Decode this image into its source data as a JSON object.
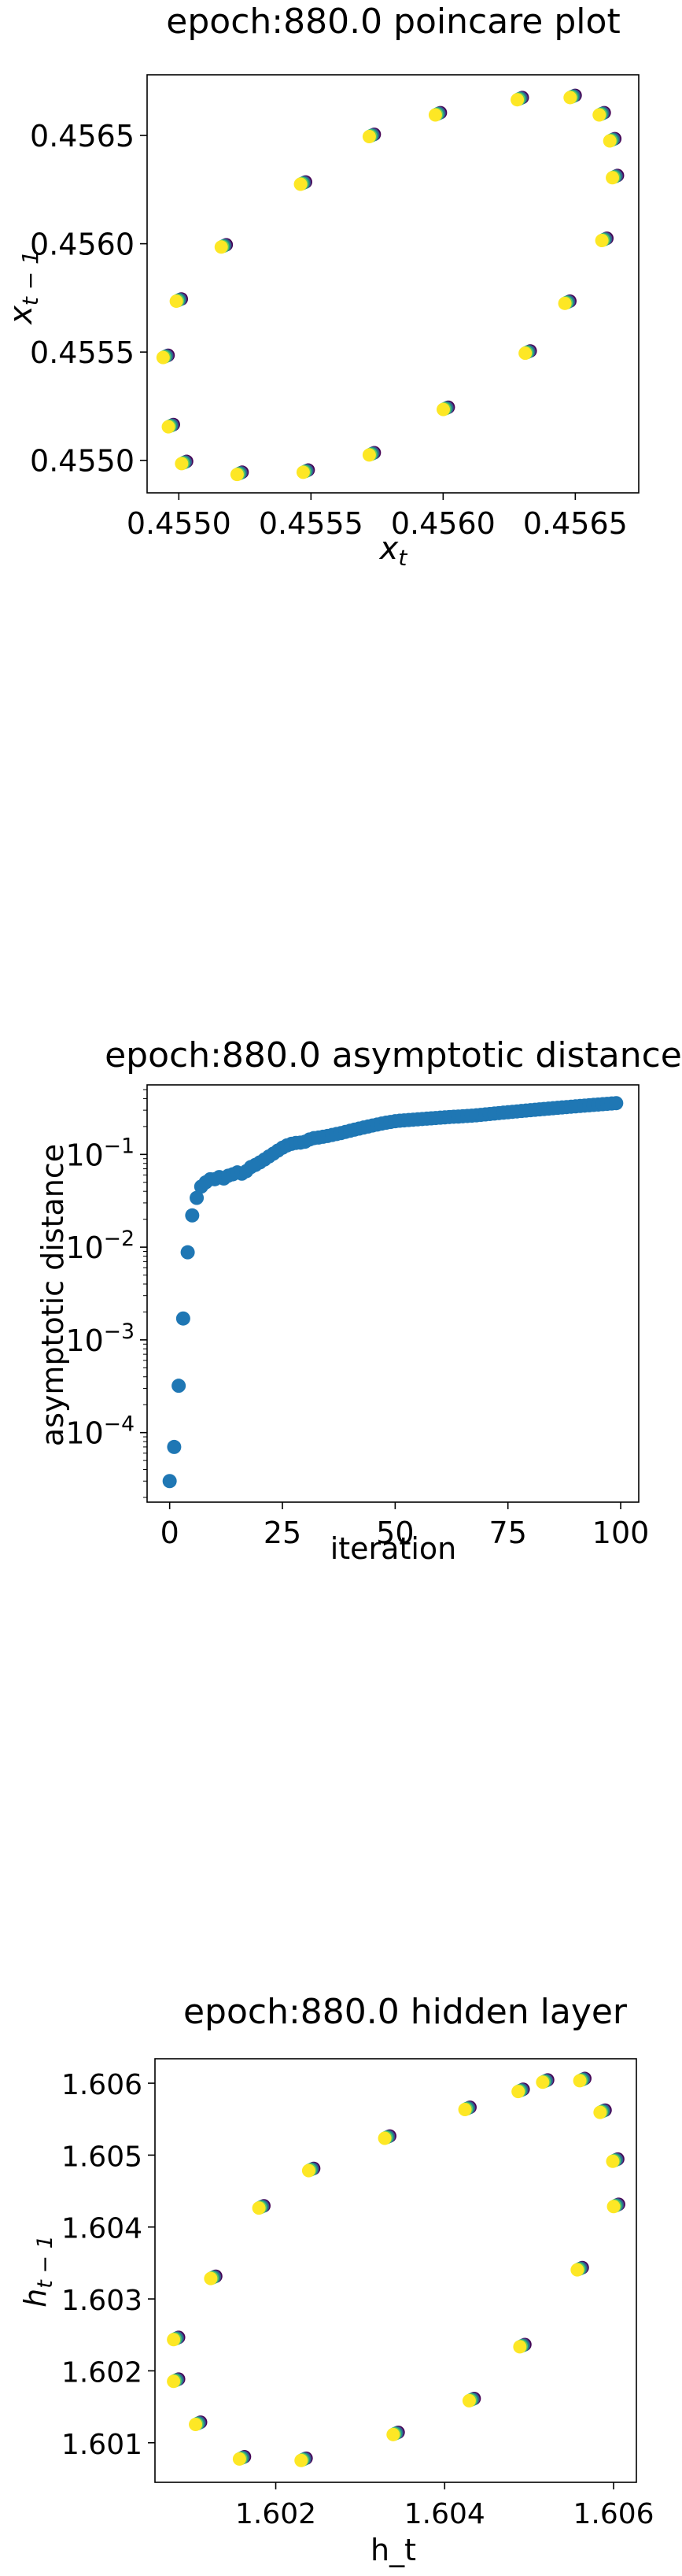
{
  "chart_data": [
    {
      "type": "scatter",
      "title": "epoch:880.0 poincare plot",
      "xlabel": "x_t",
      "ylabel": "x_{t-1}",
      "xlim": [
        0.45488,
        0.45674
      ],
      "ylim": [
        0.45485,
        0.45678
      ],
      "xticks": [
        0.455,
        0.4555,
        0.456,
        0.4565
      ],
      "xtick_labels": [
        "0.4550",
        "0.4555",
        "0.4560",
        "0.4565"
      ],
      "yticks": [
        0.455,
        0.4555,
        0.456,
        0.4565
      ],
      "ytick_labels": [
        "0.4550",
        "0.4555",
        "0.4560",
        "0.4565"
      ],
      "grid": false,
      "color_map": "viridis",
      "colors": [
        "#440154",
        "#3b528b",
        "#21918c",
        "#5ec962",
        "#fde725"
      ],
      "points": [
        {
          "x": 0.45495,
          "y": 0.45548
        },
        {
          "x": 0.45497,
          "y": 0.45516
        },
        {
          "x": 0.45502,
          "y": 0.45499
        },
        {
          "x": 0.45523,
          "y": 0.45494
        },
        {
          "x": 0.45548,
          "y": 0.45495
        },
        {
          "x": 0.45573,
          "y": 0.45503
        },
        {
          "x": 0.45601,
          "y": 0.45524
        },
        {
          "x": 0.45632,
          "y": 0.4555
        },
        {
          "x": 0.45647,
          "y": 0.45573
        },
        {
          "x": 0.45661,
          "y": 0.45602
        },
        {
          "x": 0.45665,
          "y": 0.45631
        },
        {
          "x": 0.45664,
          "y": 0.45648
        },
        {
          "x": 0.4566,
          "y": 0.4566
        },
        {
          "x": 0.45649,
          "y": 0.45668
        },
        {
          "x": 0.45629,
          "y": 0.45667
        },
        {
          "x": 0.45598,
          "y": 0.4566
        },
        {
          "x": 0.45573,
          "y": 0.4565
        },
        {
          "x": 0.45547,
          "y": 0.45628
        },
        {
          "x": 0.45517,
          "y": 0.45599
        },
        {
          "x": 0.455,
          "y": 0.45574
        }
      ]
    },
    {
      "type": "scatter",
      "title": "epoch:880.0 asymptotic distance",
      "xlabel": "iteration",
      "ylabel": "asymptotic distance",
      "yscale": "log",
      "xlim": [
        -5,
        104
      ],
      "ylim_log10": [
        -4.75,
        -0.25
      ],
      "xticks": [
        0,
        25,
        50,
        75,
        100
      ],
      "xtick_labels": [
        "0",
        "25",
        "50",
        "75",
        "100"
      ],
      "yticks_log10": [
        -4,
        -3,
        -2,
        -1
      ],
      "ytick_labels": [
        "10^-4",
        "10^-3",
        "10^-2",
        "10^-1"
      ],
      "grid": false,
      "color": "#1f77b4",
      "x": [
        0,
        1,
        2,
        3,
        4,
        5,
        6,
        7,
        8,
        9,
        10,
        11,
        12,
        13,
        14,
        15,
        16,
        17,
        18,
        19,
        20,
        21,
        22,
        23,
        24,
        25,
        26,
        27,
        28,
        29,
        30,
        31,
        32,
        33,
        34,
        35,
        36,
        37,
        38,
        39,
        40,
        41,
        42,
        43,
        44,
        45,
        46,
        47,
        48,
        49,
        50,
        51,
        52,
        53,
        54,
        55,
        56,
        57,
        58,
        59,
        60,
        61,
        62,
        63,
        64,
        65,
        66,
        67,
        68,
        69,
        70,
        71,
        72,
        73,
        74,
        75,
        76,
        77,
        78,
        79,
        80,
        81,
        82,
        83,
        84,
        85,
        86,
        87,
        88,
        89,
        90,
        91,
        92,
        93,
        94,
        95,
        96,
        97,
        98,
        99
      ],
      "values": [
        3e-05,
        7e-05,
        0.00032,
        0.0017,
        0.0088,
        0.022,
        0.034,
        0.045,
        0.05,
        0.054,
        0.054,
        0.057,
        0.055,
        0.059,
        0.061,
        0.064,
        0.062,
        0.066,
        0.073,
        0.077,
        0.082,
        0.088,
        0.095,
        0.102,
        0.11,
        0.118,
        0.125,
        0.13,
        0.133,
        0.134,
        0.137,
        0.145,
        0.15,
        0.152,
        0.155,
        0.158,
        0.162,
        0.166,
        0.17,
        0.175,
        0.18,
        0.185,
        0.19,
        0.195,
        0.2,
        0.205,
        0.21,
        0.215,
        0.22,
        0.224,
        0.228,
        0.231,
        0.233,
        0.235,
        0.237,
        0.239,
        0.241,
        0.243,
        0.245,
        0.247,
        0.249,
        0.251,
        0.253,
        0.255,
        0.256,
        0.258,
        0.26,
        0.262,
        0.264,
        0.267,
        0.27,
        0.273,
        0.276,
        0.279,
        0.282,
        0.285,
        0.288,
        0.291,
        0.294,
        0.297,
        0.3,
        0.303,
        0.306,
        0.309,
        0.312,
        0.315,
        0.318,
        0.321,
        0.324,
        0.327,
        0.33,
        0.333,
        0.336,
        0.339,
        0.342,
        0.345,
        0.348,
        0.351,
        0.354,
        0.357
      ]
    },
    {
      "type": "scatter",
      "title": "epoch:880.0 hidden layer",
      "xlabel": "h_t",
      "ylabel": "h_{t-1}",
      "xlim": [
        1.60057,
        1.60627
      ],
      "ylim": [
        1.60045,
        1.60634
      ],
      "xticks": [
        1.602,
        1.604,
        1.606
      ],
      "xtick_labels": [
        "1.602",
        "1.604",
        "1.606"
      ],
      "yticks": [
        1.601,
        1.602,
        1.603,
        1.604,
        1.605,
        1.606
      ],
      "ytick_labels": [
        "1.601",
        "1.602",
        "1.603",
        "1.604",
        "1.605",
        "1.606"
      ],
      "grid": false,
      "color_map": "viridis",
      "colors": [
        "#440154",
        "#3b528b",
        "#21918c",
        "#5ec962",
        "#fde725"
      ],
      "points": [
        {
          "x": 1.60082,
          "y": 1.60245
        },
        {
          "x": 1.60082,
          "y": 1.60187
        },
        {
          "x": 1.60108,
          "y": 1.60127
        },
        {
          "x": 1.6016,
          "y": 1.60079
        },
        {
          "x": 1.60233,
          "y": 1.60077
        },
        {
          "x": 1.60342,
          "y": 1.60113
        },
        {
          "x": 1.60432,
          "y": 1.6016
        },
        {
          "x": 1.60492,
          "y": 1.60235
        },
        {
          "x": 1.6056,
          "y": 1.60342
        },
        {
          "x": 1.60603,
          "y": 1.6043
        },
        {
          "x": 1.60602,
          "y": 1.60493
        },
        {
          "x": 1.60587,
          "y": 1.60561
        },
        {
          "x": 1.60563,
          "y": 1.60605
        },
        {
          "x": 1.60519,
          "y": 1.60603
        },
        {
          "x": 1.6049,
          "y": 1.6059
        },
        {
          "x": 1.60427,
          "y": 1.60565
        },
        {
          "x": 1.60332,
          "y": 1.60525
        },
        {
          "x": 1.60242,
          "y": 1.6048
        },
        {
          "x": 1.60183,
          "y": 1.60428
        },
        {
          "x": 1.60126,
          "y": 1.6033
        }
      ]
    }
  ]
}
